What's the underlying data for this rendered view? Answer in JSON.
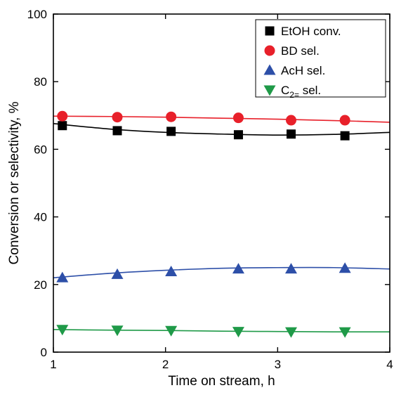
{
  "chart_data": {
    "type": "scatter",
    "xlabel": "Time on stream, h",
    "ylabel": "Conversion or selectivity, %",
    "xlim": [
      1,
      4
    ],
    "ylim": [
      0,
      100
    ],
    "xticks": [
      1,
      2,
      3,
      4
    ],
    "yticks": [
      0,
      20,
      40,
      60,
      80,
      100
    ],
    "grid": false,
    "legend_position": "top-right",
    "series": [
      {
        "name": "EtOH conv.",
        "name_main": "EtOH conv.",
        "name_sub": "",
        "name_tail": "",
        "marker": "square",
        "color": "#000000",
        "line_color": "#000000",
        "x": [
          1.08,
          1.57,
          2.05,
          2.65,
          3.12,
          3.6
        ],
        "y": [
          67.0,
          65.5,
          65.3,
          64.3,
          64.5,
          64.0
        ],
        "fit": [
          [
            1.0,
            67.6
          ],
          [
            1.5,
            66.0
          ],
          [
            2.0,
            65.0
          ],
          [
            2.5,
            64.5
          ],
          [
            3.0,
            64.2
          ],
          [
            3.5,
            64.4
          ],
          [
            4.0,
            65.0
          ]
        ]
      },
      {
        "name": "BD sel.",
        "name_main": "BD sel.",
        "name_sub": "",
        "name_tail": "",
        "marker": "circle",
        "color": "#e8202a",
        "line_color": "#e8202a",
        "x": [
          1.08,
          1.57,
          2.05,
          2.65,
          3.12,
          3.6
        ],
        "y": [
          69.8,
          69.5,
          69.6,
          69.3,
          68.6,
          68.6
        ],
        "fit": [
          [
            1.0,
            69.8
          ],
          [
            1.5,
            69.7
          ],
          [
            2.0,
            69.5
          ],
          [
            2.5,
            69.2
          ],
          [
            3.0,
            68.9
          ],
          [
            3.5,
            68.5
          ],
          [
            4.0,
            68.0
          ]
        ]
      },
      {
        "name": "AcH sel.",
        "name_main": "AcH sel.",
        "name_sub": "",
        "name_tail": "",
        "marker": "triangle-up",
        "color": "#2d4fa8",
        "line_color": "#2d4fa8",
        "x": [
          1.08,
          1.57,
          2.05,
          2.65,
          3.12,
          3.6
        ],
        "y": [
          22.0,
          23.0,
          23.8,
          24.6,
          24.6,
          24.8
        ],
        "fit": [
          [
            1.0,
            22.0
          ],
          [
            1.5,
            23.3
          ],
          [
            2.0,
            24.2
          ],
          [
            2.5,
            24.8
          ],
          [
            3.0,
            25.0
          ],
          [
            3.5,
            25.0
          ],
          [
            4.0,
            24.6
          ]
        ]
      },
      {
        "name": "C2= sel.",
        "name_main": "C",
        "name_sub": "2=",
        "name_tail": " sel.",
        "marker": "triangle-down",
        "color": "#1f9a48",
        "line_color": "#1f9a48",
        "x": [
          1.08,
          1.57,
          2.05,
          2.65,
          3.12,
          3.6
        ],
        "y": [
          6.7,
          6.5,
          6.4,
          6.1,
          6.0,
          6.0
        ],
        "fit": [
          [
            1.0,
            6.7
          ],
          [
            1.5,
            6.5
          ],
          [
            2.0,
            6.4
          ],
          [
            2.5,
            6.2
          ],
          [
            3.0,
            6.1
          ],
          [
            3.5,
            6.0
          ],
          [
            4.0,
            6.0
          ]
        ]
      }
    ]
  }
}
